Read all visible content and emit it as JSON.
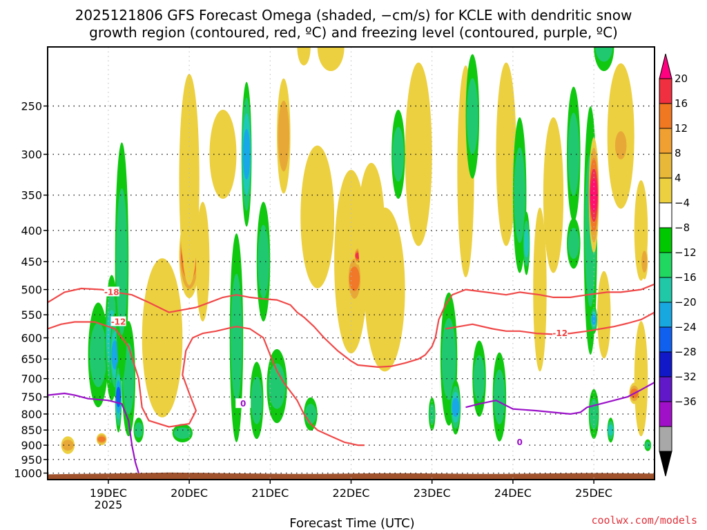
{
  "chart_data": {
    "type": "heatmap",
    "title": {
      "line1": "2025121806 GFS Forecast Omega (shaded, −cm/s) for KCLE with dendritic snow",
      "line2": "growth region (contoured, red, ºC) and freezing level (contoured, purple, ºC)"
    },
    "xlabel": "Forecast Time (UTC)",
    "ylabel": "",
    "x_ticks": [
      {
        "label": "19DEC",
        "sub": "2025",
        "hour": 18
      },
      {
        "label": "20DEC",
        "sub": "",
        "hour": 42
      },
      {
        "label": "21DEC",
        "sub": "",
        "hour": 66
      },
      {
        "label": "22DEC",
        "sub": "",
        "hour": 90
      },
      {
        "label": "23DEC",
        "sub": "",
        "hour": 114
      },
      {
        "label": "24DEC",
        "sub": "",
        "hour": 138
      },
      {
        "label": "25DEC",
        "sub": "",
        "hour": 162
      }
    ],
    "xlim": [
      0,
      180
    ],
    "y_ticks": [
      250,
      300,
      350,
      400,
      450,
      500,
      550,
      600,
      650,
      700,
      750,
      800,
      850,
      900,
      950,
      1000
    ],
    "ylim": [
      1025,
      200
    ],
    "colorbar": {
      "labels": [
        "20",
        "16",
        "12",
        "8",
        "4",
        "−4",
        "−8",
        "−12",
        "−16",
        "−20",
        "−24",
        "−28",
        "−32",
        "−36"
      ],
      "colors": [
        "#ff0080",
        "#f03040",
        "#f07820",
        "#f0a030",
        "#e8b838",
        "#ecd040",
        "#ffffff",
        "#00c800",
        "#20d860",
        "#20c8a8",
        "#18a8e0",
        "#1060f0",
        "#1018c8",
        "#6018c8",
        "#a010c8",
        "#a8a8a8",
        "#000000"
      ]
    },
    "omega_blobs": [
      {
        "t": 6,
        "p": 900,
        "dt": 2,
        "dp": 60,
        "v": 8
      },
      {
        "t": 15,
        "p": 640,
        "dt": 3,
        "dp": 250,
        "v": -8
      },
      {
        "t": 19,
        "p": 600,
        "dt": 2,
        "dp": 280,
        "v": -12
      },
      {
        "t": 20,
        "p": 640,
        "dt": 1.5,
        "dp": 200,
        "v": -16
      },
      {
        "t": 21,
        "p": 750,
        "dt": 1,
        "dp": 200,
        "v": -22
      },
      {
        "t": 24,
        "p": 700,
        "dt": 2,
        "dp": 300,
        "v": -8
      },
      {
        "t": 22,
        "p": 450,
        "dt": 2,
        "dp": 380,
        "v": -8
      },
      {
        "t": 16,
        "p": 880,
        "dt": 1.5,
        "dp": 40,
        "v": 12
      },
      {
        "t": 27,
        "p": 850,
        "dt": 1.5,
        "dp": 80,
        "v": -8
      },
      {
        "t": 34,
        "p": 600,
        "dt": 6,
        "dp": 350,
        "v": 4
      },
      {
        "t": 42,
        "p": 440,
        "dt": 3,
        "dp": 140,
        "v": 16
      },
      {
        "t": 42,
        "p": 330,
        "dt": 3,
        "dp": 250,
        "v": 6
      },
      {
        "t": 40,
        "p": 860,
        "dt": 3,
        "dp": 60,
        "v": -8
      },
      {
        "t": 46,
        "p": 450,
        "dt": 2,
        "dp": 200,
        "v": 4
      },
      {
        "t": 52,
        "p": 300,
        "dt": 4,
        "dp": 100,
        "v": 4
      },
      {
        "t": 56,
        "p": 600,
        "dt": 2,
        "dp": 450,
        "v": -8
      },
      {
        "t": 59,
        "p": 300,
        "dt": 1.5,
        "dp": 160,
        "v": -16
      },
      {
        "t": 62,
        "p": 760,
        "dt": 2,
        "dp": 220,
        "v": -8
      },
      {
        "t": 64,
        "p": 450,
        "dt": 2,
        "dp": 200,
        "v": -8
      },
      {
        "t": 68,
        "p": 720,
        "dt": 3,
        "dp": 200,
        "v": -8
      },
      {
        "t": 70,
        "p": 280,
        "dt": 2,
        "dp": 120,
        "v": 8
      },
      {
        "t": 76,
        "p": 200,
        "dt": 2,
        "dp": 60,
        "v": 6
      },
      {
        "t": 78,
        "p": 800,
        "dt": 2,
        "dp": 100,
        "v": -8
      },
      {
        "t": 80,
        "p": 380,
        "dt": 5,
        "dp": 200,
        "v": 4
      },
      {
        "t": 84,
        "p": 200,
        "dt": 4,
        "dp": 80,
        "v": 6
      },
      {
        "t": 90,
        "p": 450,
        "dt": 5,
        "dp": 300,
        "v": 6
      },
      {
        "t": 91,
        "p": 480,
        "dt": 2,
        "dp": 100,
        "v": 12
      },
      {
        "t": 92,
        "p": 440,
        "dt": 1,
        "dp": 30,
        "v": 16
      },
      {
        "t": 96,
        "p": 400,
        "dt": 4,
        "dp": 200,
        "v": 4
      },
      {
        "t": 100,
        "p": 500,
        "dt": 6,
        "dp": 300,
        "v": 4
      },
      {
        "t": 104,
        "p": 300,
        "dt": 2,
        "dp": 100,
        "v": -8
      },
      {
        "t": 110,
        "p": 300,
        "dt": 4,
        "dp": 200,
        "v": 4
      },
      {
        "t": 114,
        "p": 800,
        "dt": 1,
        "dp": 100,
        "v": -8
      },
      {
        "t": 119,
        "p": 650,
        "dt": 2.5,
        "dp": 320,
        "v": -8
      },
      {
        "t": 121,
        "p": 780,
        "dt": 1.5,
        "dp": 160,
        "v": -16
      },
      {
        "t": 124,
        "p": 320,
        "dt": 2.5,
        "dp": 250,
        "v": 4
      },
      {
        "t": 126,
        "p": 260,
        "dt": 2,
        "dp": 120,
        "v": -8
      },
      {
        "t": 128,
        "p": 700,
        "dt": 2,
        "dp": 200,
        "v": -8
      },
      {
        "t": 134,
        "p": 750,
        "dt": 2,
        "dp": 250,
        "v": -8
      },
      {
        "t": 136,
        "p": 300,
        "dt": 3,
        "dp": 200,
        "v": 4
      },
      {
        "t": 140,
        "p": 350,
        "dt": 2,
        "dp": 200,
        "v": -8
      },
      {
        "t": 142,
        "p": 420,
        "dt": 1,
        "dp": 100,
        "v": -14
      },
      {
        "t": 146,
        "p": 500,
        "dt": 2,
        "dp": 300,
        "v": 4
      },
      {
        "t": 150,
        "p": 350,
        "dt": 3,
        "dp": 200,
        "v": 4
      },
      {
        "t": 156,
        "p": 300,
        "dt": 2,
        "dp": 150,
        "v": -8
      },
      {
        "t": 156,
        "p": 420,
        "dt": 2,
        "dp": 80,
        "v": -8
      },
      {
        "t": 161,
        "p": 400,
        "dt": 2,
        "dp": 350,
        "v": -8
      },
      {
        "t": 162,
        "p": 350,
        "dt": 1.5,
        "dp": 150,
        "v": 20
      },
      {
        "t": 162,
        "p": 560,
        "dt": 1,
        "dp": 60,
        "v": -18
      },
      {
        "t": 162,
        "p": 800,
        "dt": 1.5,
        "dp": 150,
        "v": -8
      },
      {
        "t": 165,
        "p": 550,
        "dt": 2,
        "dp": 180,
        "v": 4
      },
      {
        "t": 165,
        "p": 200,
        "dt": 3,
        "dp": 80,
        "v": -8
      },
      {
        "t": 167,
        "p": 850,
        "dt": 1,
        "dp": 80,
        "v": -12
      },
      {
        "t": 170,
        "p": 280,
        "dt": 4,
        "dp": 150,
        "v": 4
      },
      {
        "t": 170,
        "p": 290,
        "dt": 2,
        "dp": 50,
        "v": 10
      },
      {
        "t": 176,
        "p": 400,
        "dt": 2,
        "dp": 150,
        "v": 4
      },
      {
        "t": 176,
        "p": 700,
        "dt": 2,
        "dp": 300,
        "v": 4
      },
      {
        "t": 177,
        "p": 450,
        "dt": 1,
        "dp": 60,
        "v": 8
      },
      {
        "t": 178,
        "p": 900,
        "dt": 1,
        "dp": 40,
        "v": -8
      },
      {
        "t": 174,
        "p": 740,
        "dt": 1.5,
        "dp": 60,
        "v": 12
      }
    ],
    "contours_red": [
      {
        "value": "-18",
        "label_at": {
          "t": 19,
          "p": 505
        },
        "points": [
          [
            0,
            525
          ],
          [
            5,
            505
          ],
          [
            10,
            498
          ],
          [
            16,
            500
          ],
          [
            20,
            505
          ],
          [
            25,
            510
          ],
          [
            30,
            525
          ],
          [
            36,
            545
          ],
          [
            40,
            540
          ],
          [
            44,
            535
          ],
          [
            48,
            525
          ],
          [
            52,
            515
          ],
          [
            56,
            510
          ],
          [
            60,
            515
          ],
          [
            64,
            518
          ],
          [
            68,
            520
          ],
          [
            72,
            530
          ],
          [
            74,
            545
          ],
          [
            76,
            555
          ],
          [
            79,
            575
          ],
          [
            82,
            600
          ],
          [
            86,
            630
          ],
          [
            90,
            655
          ],
          [
            92,
            665
          ],
          [
            98,
            670
          ],
          [
            102,
            668
          ],
          [
            106,
            660
          ],
          [
            110,
            650
          ],
          [
            112,
            640
          ],
          [
            114,
            620
          ],
          [
            115,
            600
          ],
          [
            116,
            560
          ],
          [
            118,
            530
          ],
          [
            120,
            510
          ],
          [
            124,
            500
          ],
          [
            130,
            505
          ],
          [
            136,
            510
          ],
          [
            140,
            505
          ],
          [
            146,
            510
          ],
          [
            150,
            515
          ],
          [
            155,
            515
          ],
          [
            160,
            510
          ],
          [
            166,
            505
          ],
          [
            170,
            505
          ],
          [
            176,
            500
          ],
          [
            180,
            490
          ]
        ]
      },
      {
        "value": "-12",
        "label_at": {
          "t": 21,
          "p": 565
        },
        "points": [
          [
            0,
            580
          ],
          [
            4,
            570
          ],
          [
            8,
            565
          ],
          [
            14,
            565
          ],
          [
            20,
            580
          ],
          [
            24,
            620
          ],
          [
            27,
            700
          ],
          [
            28,
            780
          ],
          [
            30,
            820
          ],
          [
            36,
            840
          ],
          [
            42,
            830
          ],
          [
            44,
            790
          ],
          [
            42,
            740
          ],
          [
            40,
            690
          ],
          [
            41,
            630
          ],
          [
            43,
            600
          ],
          [
            46,
            590
          ],
          [
            50,
            585
          ],
          [
            54,
            578
          ],
          [
            56,
            575
          ],
          [
            60,
            580
          ],
          [
            64,
            600
          ],
          [
            66,
            640
          ],
          [
            68,
            680
          ],
          [
            70,
            710
          ],
          [
            74,
            760
          ],
          [
            76,
            800
          ],
          [
            78,
            830
          ],
          [
            80,
            850
          ],
          [
            84,
            870
          ],
          [
            88,
            890
          ],
          [
            92,
            900
          ],
          [
            94,
            900
          ]
        ]
      },
      {
        "value": "-12",
        "label_at": {
          "t": 152,
          "p": 590
        },
        "points": [
          [
            118,
            580
          ],
          [
            122,
            575
          ],
          [
            126,
            570
          ],
          [
            132,
            580
          ],
          [
            136,
            585
          ],
          [
            140,
            585
          ],
          [
            145,
            590
          ],
          [
            150,
            592
          ],
          [
            155,
            590
          ],
          [
            160,
            585
          ],
          [
            164,
            580
          ],
          [
            168,
            575
          ],
          [
            172,
            568
          ],
          [
            176,
            560
          ],
          [
            180,
            545
          ]
        ]
      }
    ],
    "contours_purple": [
      {
        "value": "0",
        "label_at": {
          "t": 58,
          "p": 770
        },
        "points": [
          [
            0,
            745
          ],
          [
            5,
            740
          ],
          [
            8,
            745
          ],
          [
            12,
            755
          ],
          [
            18,
            760
          ],
          [
            22,
            770
          ],
          [
            24,
            820
          ],
          [
            25,
            900
          ],
          [
            26,
            960
          ],
          [
            27,
            1000
          ]
        ]
      },
      {
        "value": "0",
        "label_at": {
          "t": 140,
          "p": 890
        },
        "points": [
          [
            124,
            780
          ],
          [
            128,
            770
          ],
          [
            133,
            760
          ],
          [
            138,
            785
          ],
          [
            145,
            790
          ],
          [
            150,
            795
          ],
          [
            155,
            800
          ],
          [
            158,
            795
          ],
          [
            160,
            780
          ],
          [
            166,
            765
          ],
          [
            172,
            750
          ],
          [
            176,
            730
          ],
          [
            180,
            710
          ]
        ]
      }
    ]
  },
  "credit": "coolwx.com/models"
}
